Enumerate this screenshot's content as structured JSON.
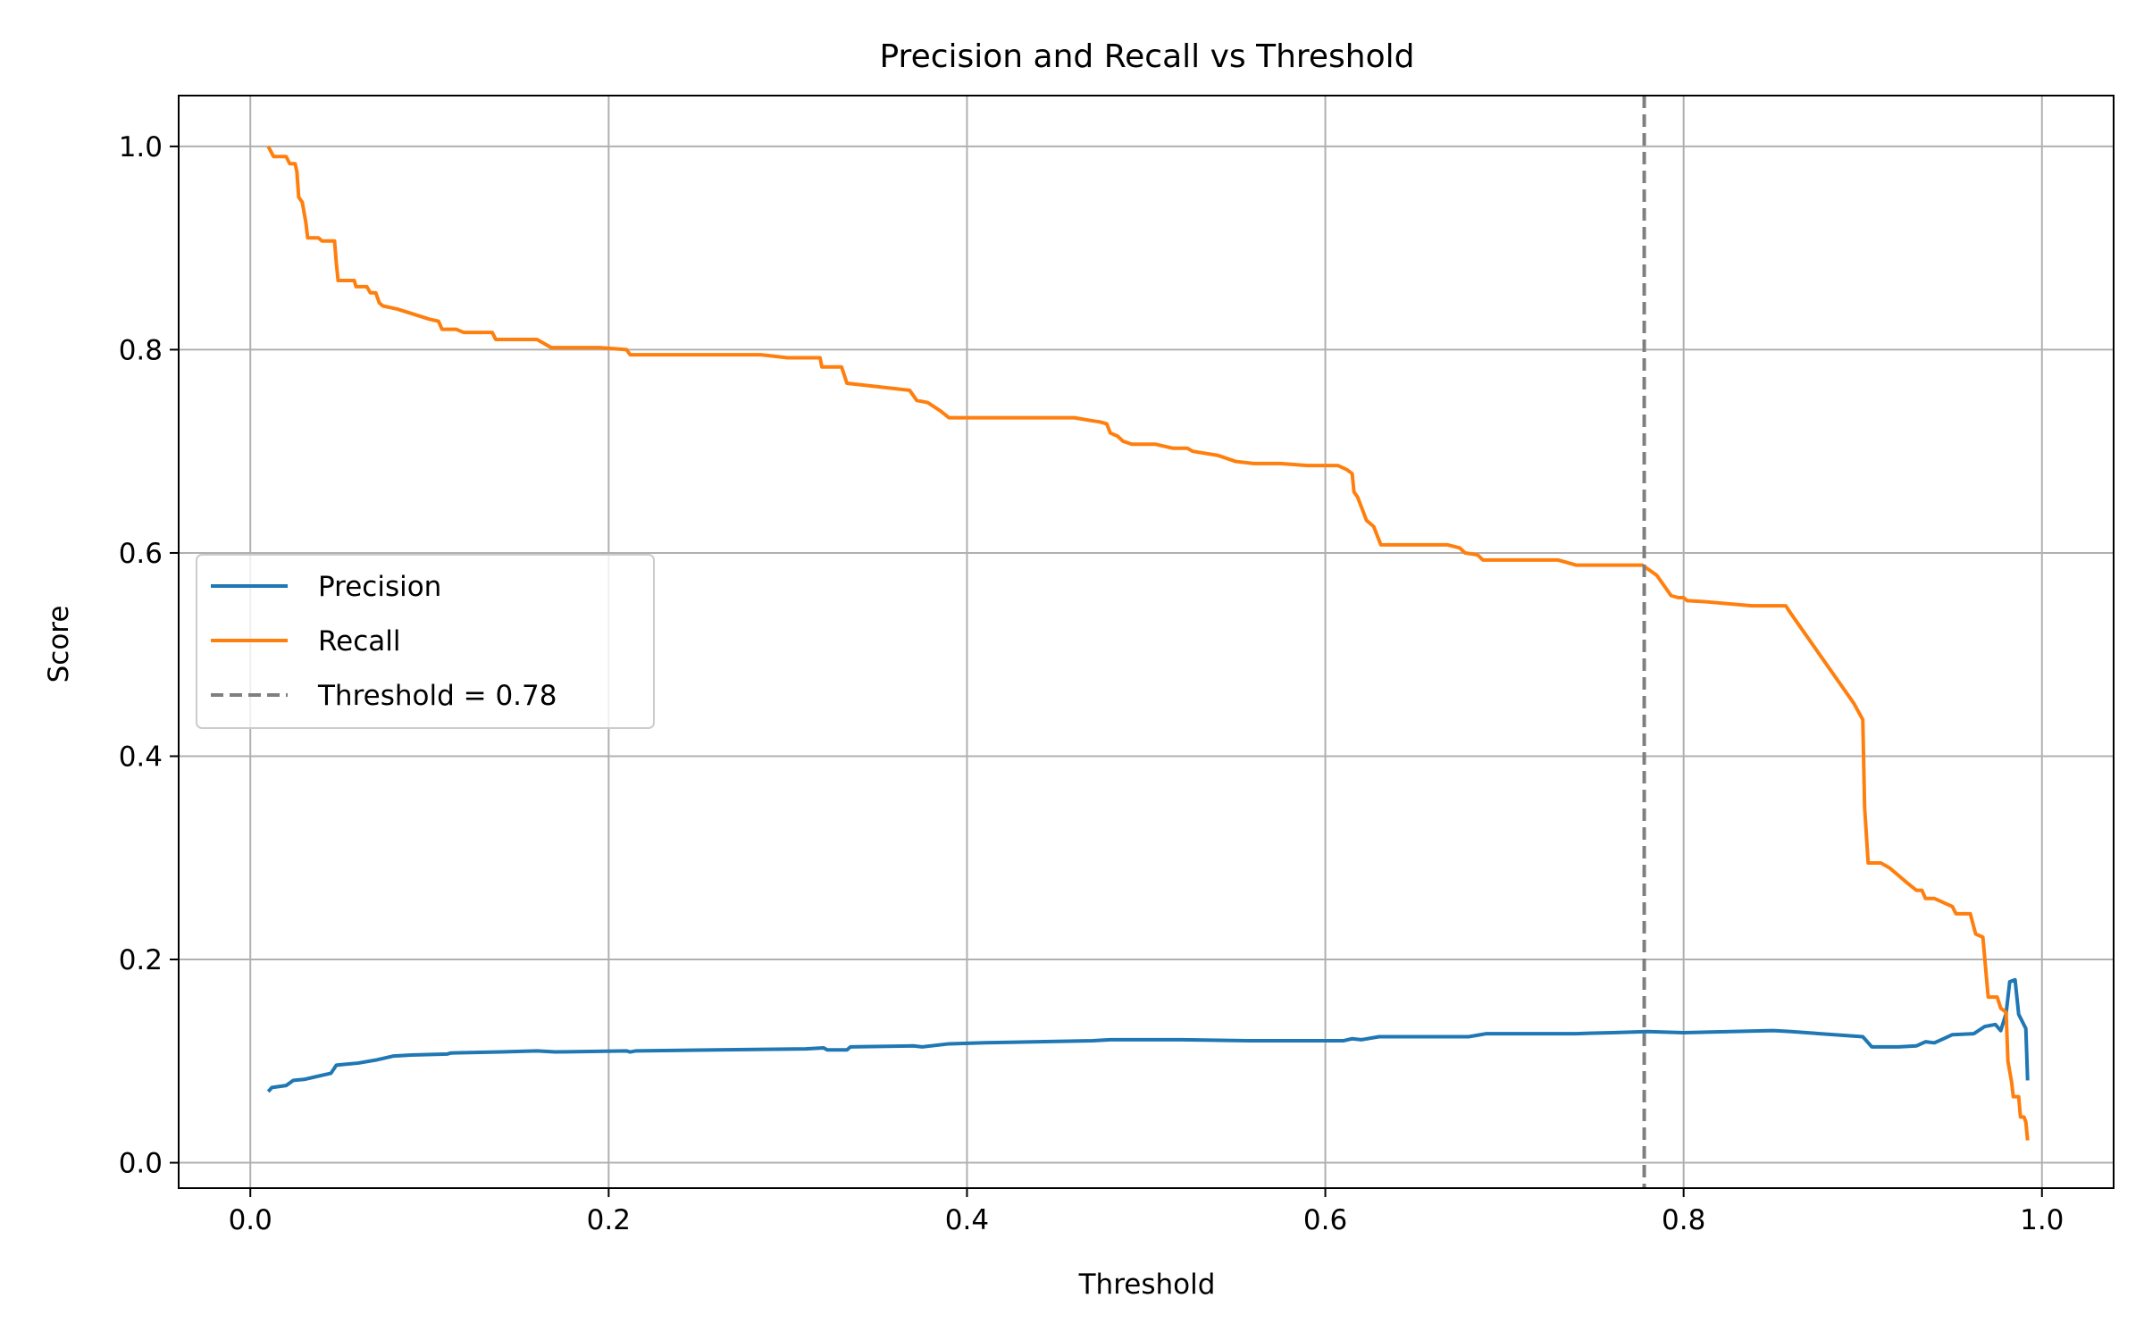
{
  "chart_data": {
    "type": "line",
    "title": "Precision and Recall vs Threshold",
    "xlabel": "Threshold",
    "ylabel": "Score",
    "xlim": [
      -0.04,
      1.04
    ],
    "ylim": [
      -0.025,
      1.05
    ],
    "xticks": [
      0.0,
      0.2,
      0.4,
      0.6,
      0.8,
      1.0
    ],
    "xtick_labels": [
      "0.0",
      "0.2",
      "0.4",
      "0.6",
      "0.8",
      "1.0"
    ],
    "yticks": [
      0.0,
      0.2,
      0.4,
      0.6,
      0.8,
      1.0
    ],
    "ytick_labels": [
      "0.0",
      "0.2",
      "0.4",
      "0.6",
      "0.8",
      "1.0"
    ],
    "grid": true,
    "legend_position": "center-left",
    "series": [
      {
        "name": "Precision",
        "color": "#1f77b4",
        "style": "solid",
        "points": [
          [
            0.01,
            0.07
          ],
          [
            0.012,
            0.074
          ],
          [
            0.02,
            0.076
          ],
          [
            0.024,
            0.081
          ],
          [
            0.03,
            0.082
          ],
          [
            0.035,
            0.084
          ],
          [
            0.04,
            0.086
          ],
          [
            0.045,
            0.088
          ],
          [
            0.048,
            0.096
          ],
          [
            0.06,
            0.098
          ],
          [
            0.07,
            0.101
          ],
          [
            0.08,
            0.105
          ],
          [
            0.09,
            0.106
          ],
          [
            0.11,
            0.107
          ],
          [
            0.112,
            0.108
          ],
          [
            0.14,
            0.109
          ],
          [
            0.16,
            0.11
          ],
          [
            0.17,
            0.109
          ],
          [
            0.21,
            0.11
          ],
          [
            0.212,
            0.109
          ],
          [
            0.215,
            0.11
          ],
          [
            0.26,
            0.111
          ],
          [
            0.31,
            0.112
          ],
          [
            0.32,
            0.113
          ],
          [
            0.322,
            0.111
          ],
          [
            0.333,
            0.111
          ],
          [
            0.335,
            0.114
          ],
          [
            0.37,
            0.115
          ],
          [
            0.375,
            0.114
          ],
          [
            0.39,
            0.117
          ],
          [
            0.41,
            0.118
          ],
          [
            0.44,
            0.119
          ],
          [
            0.47,
            0.12
          ],
          [
            0.48,
            0.121
          ],
          [
            0.52,
            0.121
          ],
          [
            0.56,
            0.12
          ],
          [
            0.61,
            0.12
          ],
          [
            0.615,
            0.122
          ],
          [
            0.62,
            0.121
          ],
          [
            0.63,
            0.124
          ],
          [
            0.68,
            0.124
          ],
          [
            0.69,
            0.127
          ],
          [
            0.74,
            0.127
          ],
          [
            0.76,
            0.128
          ],
          [
            0.78,
            0.129
          ],
          [
            0.8,
            0.128
          ],
          [
            0.85,
            0.13
          ],
          [
            0.86,
            0.129
          ],
          [
            0.9,
            0.124
          ],
          [
            0.905,
            0.114
          ],
          [
            0.92,
            0.114
          ],
          [
            0.93,
            0.115
          ],
          [
            0.935,
            0.119
          ],
          [
            0.94,
            0.118
          ],
          [
            0.945,
            0.122
          ],
          [
            0.95,
            0.126
          ],
          [
            0.962,
            0.127
          ],
          [
            0.968,
            0.134
          ],
          [
            0.974,
            0.136
          ],
          [
            0.977,
            0.13
          ],
          [
            0.98,
            0.147
          ],
          [
            0.982,
            0.178
          ],
          [
            0.985,
            0.18
          ],
          [
            0.987,
            0.146
          ],
          [
            0.991,
            0.132
          ],
          [
            0.992,
            0.081
          ]
        ]
      },
      {
        "name": "Recall",
        "color": "#ff7f0e",
        "style": "solid",
        "points": [
          [
            0.01,
            1.0
          ],
          [
            0.013,
            0.99
          ],
          [
            0.02,
            0.99
          ],
          [
            0.022,
            0.983
          ],
          [
            0.025,
            0.983
          ],
          [
            0.026,
            0.975
          ],
          [
            0.027,
            0.95
          ],
          [
            0.029,
            0.945
          ],
          [
            0.031,
            0.925
          ],
          [
            0.032,
            0.91
          ],
          [
            0.038,
            0.91
          ],
          [
            0.04,
            0.907
          ],
          [
            0.047,
            0.907
          ],
          [
            0.048,
            0.885
          ],
          [
            0.049,
            0.868
          ],
          [
            0.058,
            0.868
          ],
          [
            0.059,
            0.862
          ],
          [
            0.065,
            0.862
          ],
          [
            0.067,
            0.856
          ],
          [
            0.07,
            0.856
          ],
          [
            0.072,
            0.846
          ],
          [
            0.074,
            0.843
          ],
          [
            0.082,
            0.84
          ],
          [
            0.1,
            0.83
          ],
          [
            0.105,
            0.828
          ],
          [
            0.107,
            0.82
          ],
          [
            0.115,
            0.82
          ],
          [
            0.119,
            0.817
          ],
          [
            0.135,
            0.817
          ],
          [
            0.137,
            0.81
          ],
          [
            0.16,
            0.81
          ],
          [
            0.168,
            0.802
          ],
          [
            0.195,
            0.802
          ],
          [
            0.21,
            0.8
          ],
          [
            0.212,
            0.795
          ],
          [
            0.285,
            0.795
          ],
          [
            0.3,
            0.792
          ],
          [
            0.318,
            0.792
          ],
          [
            0.319,
            0.783
          ],
          [
            0.33,
            0.783
          ],
          [
            0.333,
            0.767
          ],
          [
            0.368,
            0.76
          ],
          [
            0.372,
            0.75
          ],
          [
            0.378,
            0.748
          ],
          [
            0.385,
            0.74
          ],
          [
            0.39,
            0.733
          ],
          [
            0.46,
            0.733
          ],
          [
            0.47,
            0.73
          ],
          [
            0.474,
            0.729
          ],
          [
            0.478,
            0.727
          ],
          [
            0.48,
            0.718
          ],
          [
            0.484,
            0.715
          ],
          [
            0.487,
            0.71
          ],
          [
            0.492,
            0.707
          ],
          [
            0.505,
            0.707
          ],
          [
            0.515,
            0.703
          ],
          [
            0.523,
            0.703
          ],
          [
            0.526,
            0.7
          ],
          [
            0.54,
            0.696
          ],
          [
            0.55,
            0.69
          ],
          [
            0.56,
            0.688
          ],
          [
            0.575,
            0.688
          ],
          [
            0.59,
            0.686
          ],
          [
            0.607,
            0.686
          ],
          [
            0.612,
            0.682
          ],
          [
            0.615,
            0.678
          ],
          [
            0.616,
            0.66
          ],
          [
            0.618,
            0.655
          ],
          [
            0.623,
            0.632
          ],
          [
            0.627,
            0.626
          ],
          [
            0.631,
            0.608
          ],
          [
            0.668,
            0.608
          ],
          [
            0.675,
            0.605
          ],
          [
            0.678,
            0.6
          ],
          [
            0.685,
            0.598
          ],
          [
            0.688,
            0.593
          ],
          [
            0.73,
            0.593
          ],
          [
            0.74,
            0.588
          ],
          [
            0.777,
            0.588
          ],
          [
            0.785,
            0.578
          ],
          [
            0.793,
            0.558
          ],
          [
            0.797,
            0.556
          ],
          [
            0.8,
            0.556
          ],
          [
            0.802,
            0.553
          ],
          [
            0.812,
            0.552
          ],
          [
            0.838,
            0.548
          ],
          [
            0.857,
            0.548
          ],
          [
            0.86,
            0.54
          ],
          [
            0.895,
            0.452
          ],
          [
            0.9,
            0.436
          ],
          [
            0.901,
            0.35
          ],
          [
            0.903,
            0.295
          ],
          [
            0.91,
            0.295
          ],
          [
            0.915,
            0.29
          ],
          [
            0.925,
            0.275
          ],
          [
            0.93,
            0.268
          ],
          [
            0.933,
            0.268
          ],
          [
            0.935,
            0.26
          ],
          [
            0.94,
            0.26
          ],
          [
            0.95,
            0.252
          ],
          [
            0.952,
            0.245
          ],
          [
            0.96,
            0.245
          ],
          [
            0.963,
            0.225
          ],
          [
            0.967,
            0.222
          ],
          [
            0.97,
            0.163
          ],
          [
            0.975,
            0.163
          ],
          [
            0.977,
            0.152
          ],
          [
            0.98,
            0.148
          ],
          [
            0.981,
            0.1
          ],
          [
            0.983,
            0.08
          ],
          [
            0.984,
            0.065
          ],
          [
            0.987,
            0.065
          ],
          [
            0.988,
            0.045
          ],
          [
            0.99,
            0.045
          ],
          [
            0.991,
            0.04
          ],
          [
            0.992,
            0.022
          ]
        ]
      }
    ],
    "vline": {
      "label": "Threshold = 0.78",
      "x": 0.778,
      "color": "#7f7f7f",
      "style": "dashed"
    }
  }
}
